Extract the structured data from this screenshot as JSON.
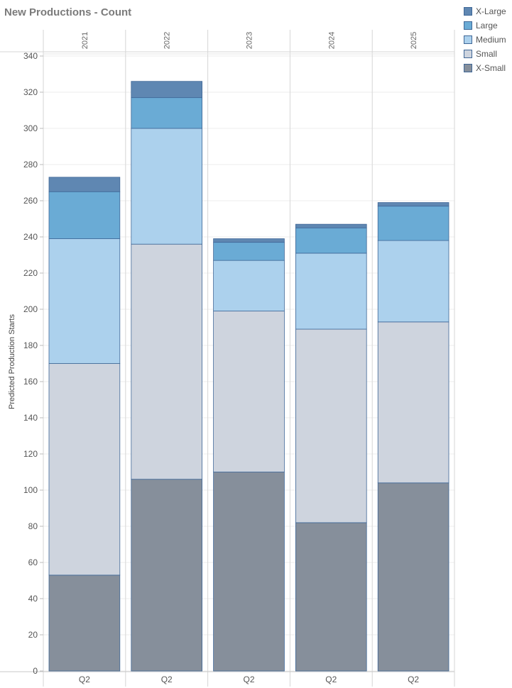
{
  "chart_data": {
    "type": "bar",
    "stacked": true,
    "title": "New Productions - Count",
    "ylabel": "Predicted Production Starts",
    "ylim": [
      0,
      340
    ],
    "yticks": [
      0,
      20,
      40,
      60,
      80,
      100,
      120,
      140,
      160,
      180,
      200,
      220,
      240,
      260,
      280,
      300,
      320,
      340
    ],
    "years": [
      "2021",
      "2022",
      "2023",
      "2024",
      "2025"
    ],
    "categories": [
      "Q2",
      "Q2",
      "Q2",
      "Q2",
      "Q2"
    ],
    "grid": true,
    "legend_position": "top-right",
    "series": [
      {
        "name": "X-Small",
        "color": "#868f9b",
        "values": [
          53,
          106,
          110,
          82,
          104
        ]
      },
      {
        "name": "Small",
        "color": "#ced4de",
        "values": [
          117,
          130,
          89,
          107,
          89
        ]
      },
      {
        "name": "Medium",
        "color": "#acd1ed",
        "values": [
          69,
          64,
          28,
          42,
          45
        ]
      },
      {
        "name": "Large",
        "color": "#6aabd5",
        "values": [
          26,
          17,
          10,
          14,
          19
        ]
      },
      {
        "name": "X-Large",
        "color": "#5f87b2",
        "values": [
          8,
          9,
          2,
          2,
          2
        ]
      }
    ],
    "legend_order": [
      "X-Large",
      "Large",
      "Medium",
      "Small",
      "X-Small"
    ]
  }
}
